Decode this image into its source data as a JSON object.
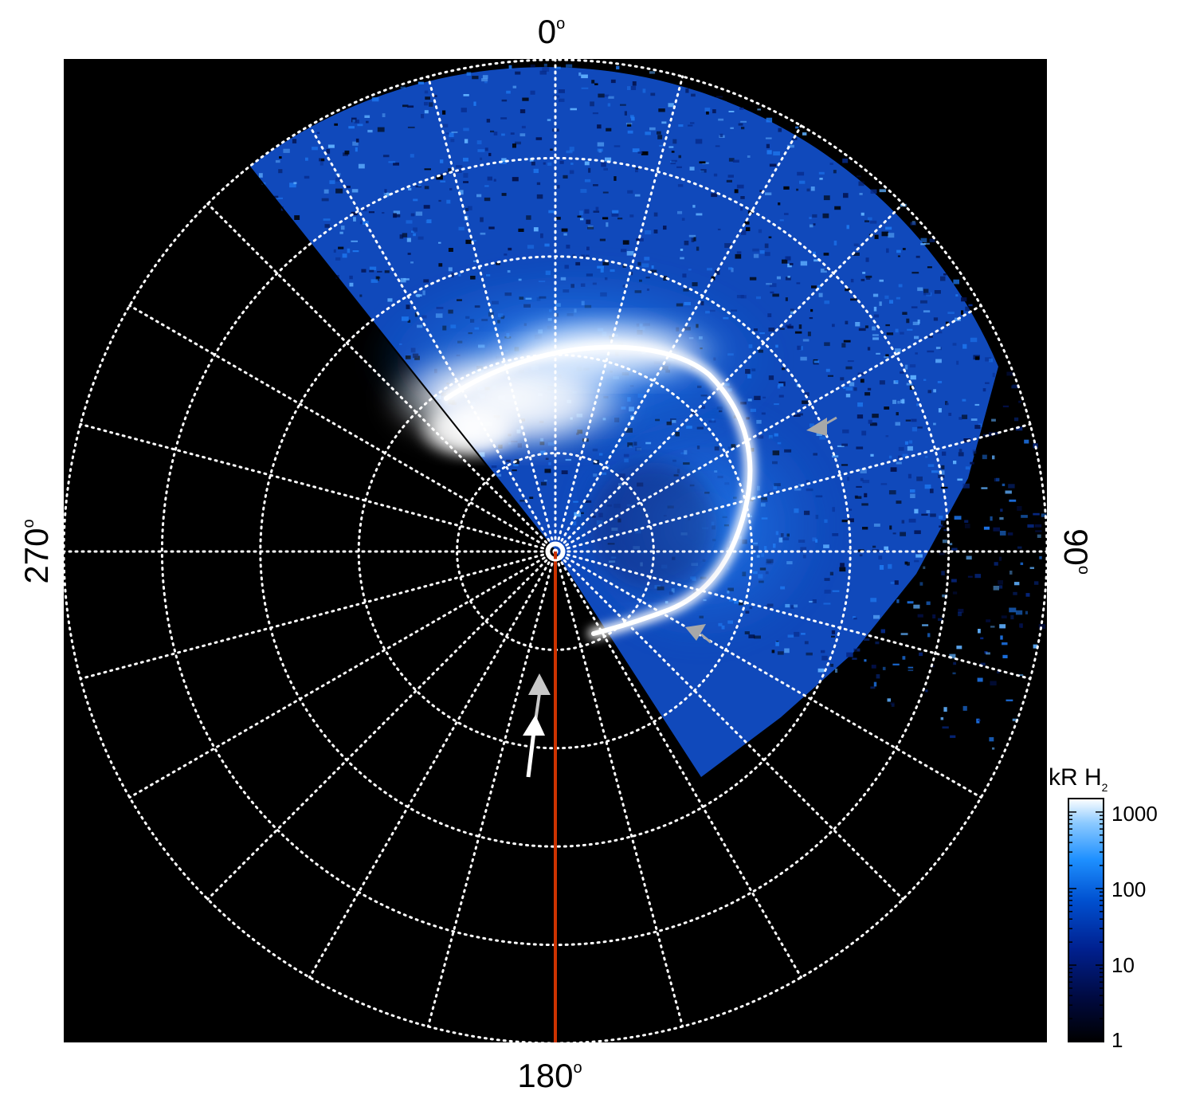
{
  "angle_labels": {
    "top": {
      "value": "0",
      "unit": "o"
    },
    "right": {
      "value": "90",
      "unit": "o"
    },
    "bottom": {
      "value": "180",
      "unit": "o"
    },
    "left": {
      "value": "270",
      "unit": "o"
    }
  },
  "colorbar": {
    "title_main": "kR H",
    "title_sub": "2",
    "ticks": [
      "1000",
      "100",
      "10",
      "1"
    ],
    "scale": "log",
    "range": [
      1,
      1500
    ],
    "colors": [
      "#000000",
      "#000a40",
      "#00208f",
      "#0050d0",
      "#1e90ff",
      "#8ccaff",
      "#ffffff"
    ]
  },
  "colors": {
    "background": "#000000",
    "grid": "#ffffff",
    "meridian_line": "#cc3300",
    "marker_gray": "#a8a8a8",
    "marker_white": "#ffffff"
  }
}
